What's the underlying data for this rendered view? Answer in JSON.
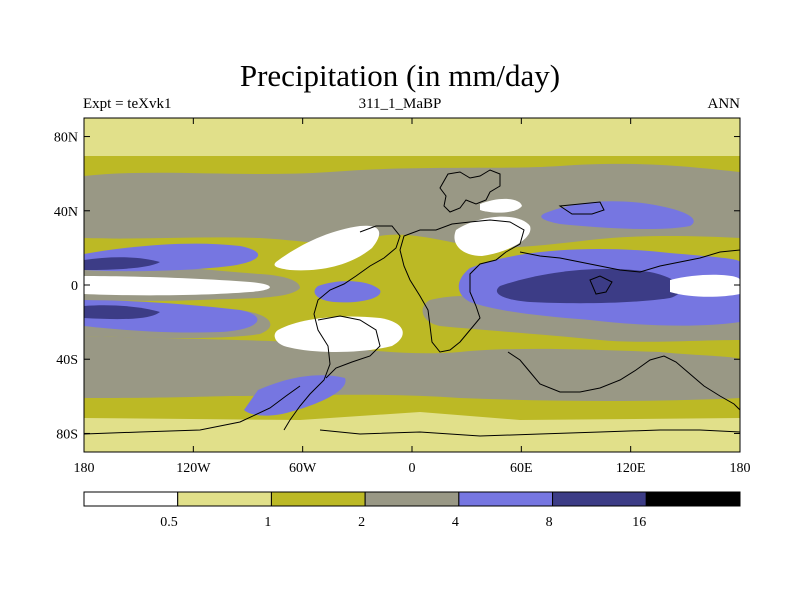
{
  "chart_data": {
    "type": "filled-contour-map",
    "title": "Precipitation (in mm/day)",
    "left_label": "Expt = teXvk1",
    "center_label": "311_1_MaBP",
    "right_label": "ANN",
    "x_axis": {
      "range": [
        -180,
        180
      ],
      "ticks": [
        -180,
        -120,
        -60,
        0,
        60,
        120,
        180
      ],
      "tick_labels": [
        "180",
        "120W",
        "60W",
        "0",
        "60E",
        "120E",
        "180"
      ]
    },
    "y_axis": {
      "range": [
        -90,
        90
      ],
      "ticks": [
        80,
        40,
        0,
        -40,
        -80
      ],
      "tick_labels": [
        "80N",
        "40N",
        "0",
        "40S",
        "80S"
      ]
    },
    "colorbar": {
      "levels": [
        "0.5",
        "1",
        "2",
        "4",
        "8",
        "16"
      ],
      "colors": [
        "#ffffff",
        "#e1e08a",
        "#bcb925",
        "#999885",
        "#7676e1",
        "#3c3c86",
        "#000000"
      ]
    }
  },
  "colors": {
    "white": "#ffffff",
    "light": "#e1e08a",
    "olive": "#bcb925",
    "gray": "#999885",
    "blue": "#7676e1",
    "navy": "#3c3c86",
    "black": "#000000"
  }
}
